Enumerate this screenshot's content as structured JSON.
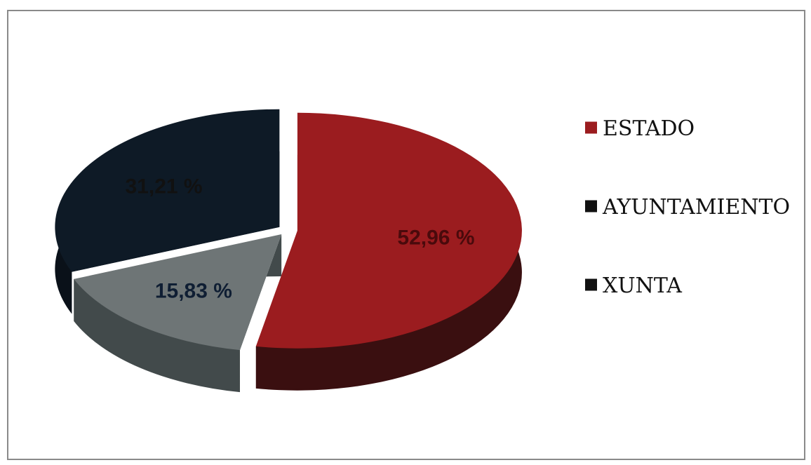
{
  "chart_data": {
    "type": "pie",
    "style": "3d-exploded",
    "legend_position": "right",
    "slices": [
      {
        "name": "ESTADO",
        "value": 52.96,
        "label": "52,96 %",
        "color": "#9b1c1f",
        "side_color": "#3a0f10",
        "label_color": "#4a0a0c"
      },
      {
        "name": "AYUNTAMIENTO",
        "value": 15.83,
        "label": "15,83  %",
        "color": "#6e7576",
        "side_color": "#424a4b",
        "label_color": "#0f1e33"
      },
      {
        "name": "XUNTA",
        "value": 31.21,
        "label": "31,21 %",
        "color": "#0e1a26",
        "side_color": "#0a1119",
        "label_color": "#111111"
      }
    ],
    "legend": [
      {
        "label": "ESTADO",
        "color": "#9b1c1f"
      },
      {
        "label": "AYUNTAMIENTO",
        "color": "#111111"
      },
      {
        "label": "XUNTA",
        "color": "#111111"
      }
    ]
  }
}
